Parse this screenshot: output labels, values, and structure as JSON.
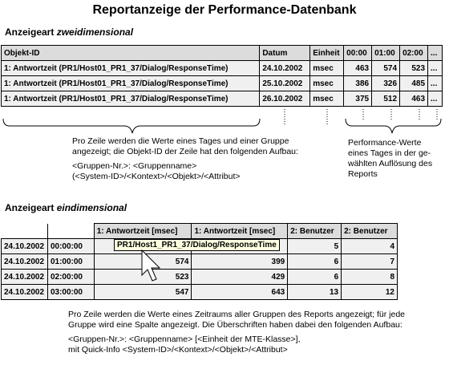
{
  "title": "Reportanzeige der Performance-Datenbank",
  "two_dim": {
    "heading_prefix": "Anzeigeart ",
    "heading_emph": "zweidimensional",
    "columns": [
      "Objekt-ID",
      "Datum",
      "Einheit",
      "00:00",
      "01:00",
      "02:00",
      "..."
    ],
    "rows": [
      [
        "1: Antwortzeit (PR1/Host01_PR1_37/Dialog/ResponseTime)",
        "24.10.2002",
        "msec",
        "463",
        "574",
        "523",
        "..."
      ],
      [
        "1: Antwortzeit (PR1/Host01_PR1_37/Dialog/ResponseTime)",
        "25.10.2002",
        "msec",
        "386",
        "326",
        "485",
        "..."
      ],
      [
        "1: Antwortzeit (PR1/Host01_PR1_37/Dialog/ResponseTime)",
        "26.10.2002",
        "msec",
        "375",
        "512",
        "463",
        "..."
      ]
    ],
    "desc_left_1": "Pro Zeile werden die Werte eines Tages und einer Gruppe",
    "desc_left_2": "angezeigt; die Objekt-ID der Zeile hat den folgenden Aufbau:",
    "desc_left_3": "<Gruppen-Nr.>: <Gruppenname>",
    "desc_left_4": "(<System-ID>/<Kontext>/<Objekt>/<Attribut>",
    "desc_right_1": "Performance-Werte",
    "desc_right_2": "eines Tages in der ge-",
    "desc_right_3": "wählten Auflösung des",
    "desc_right_4": "Reports"
  },
  "one_dim": {
    "heading_prefix": "Anzeigeart ",
    "heading_emph": "eindimensional",
    "columns": [
      "",
      "",
      "1: Antwortzeit [msec]",
      "1: Antwortzeit [msec]",
      "2: Benutzer",
      "2: Benutzer"
    ],
    "rows": [
      [
        "24.10.2002",
        "00:00:00",
        "",
        "",
        "5",
        "4"
      ],
      [
        "24.10.2002",
        "01:00:00",
        "574",
        "399",
        "6",
        "7"
      ],
      [
        "24.10.2002",
        "02:00:00",
        "523",
        "429",
        "6",
        "8"
      ],
      [
        "24.10.2002",
        "03:00:00",
        "547",
        "643",
        "13",
        "12"
      ]
    ],
    "tooltip": "PR1/Host1_PR1_37/Dialog/ResponseTime",
    "desc_1": "Pro Zeile werden die Werte eines Zeitraums aller Gruppen des Reports angezeigt; für jede",
    "desc_2": "Gruppe wird eine Spalte angezeigt. Die Überschriften haben dabei den folgenden Aufbau:",
    "desc_3": "<Gruppen-Nr.>: <Gruppenname> [<Einheit der MTE-Klasse>],",
    "desc_4": "mit Quick-Info <System-ID>/<Kontext>/<Objekt>/<Attribut>"
  }
}
